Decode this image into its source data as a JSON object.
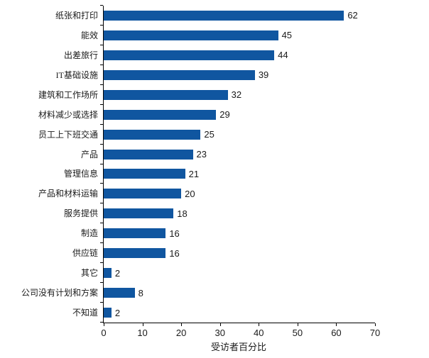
{
  "chart_data": {
    "type": "bar",
    "orientation": "horizontal",
    "title": "",
    "categories": [
      "纸张和打印",
      "能效",
      "出差旅行",
      "IT基础设施",
      "建筑和工作场所",
      "材料减少或选择",
      "员工上下班交通",
      "产品",
      "管理信息",
      "产品和材料运输",
      "服务提供",
      "制造",
      "供应链",
      "其它",
      "公司没有计划和方案",
      "不知道"
    ],
    "values": [
      62,
      45,
      44,
      39,
      32,
      29,
      25,
      23,
      21,
      20,
      18,
      16,
      16,
      2,
      8,
      2
    ],
    "xlabel": "受访者百分比",
    "xlim": [
      0,
      70
    ],
    "xticks": [
      0,
      10,
      20,
      30,
      40,
      50,
      60,
      70
    ],
    "bar_color": "#1056A0",
    "axis_color": "#000000",
    "text_color": "#1a1a1a",
    "grid": false,
    "legend": false,
    "value_labels": true
  }
}
